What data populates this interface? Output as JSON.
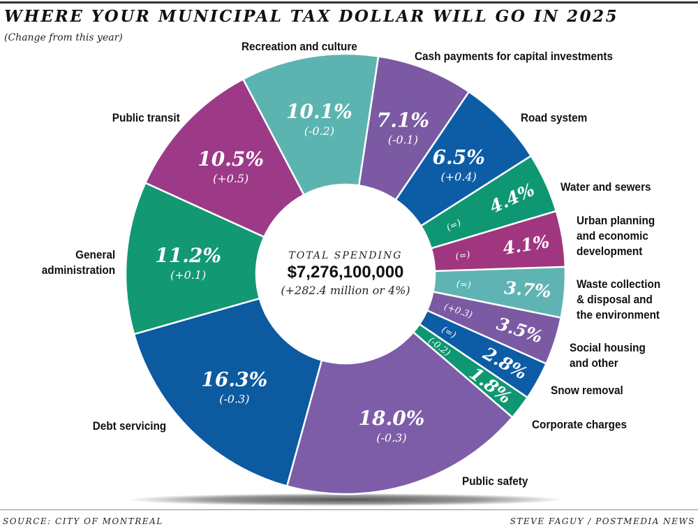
{
  "chart_data": {
    "type": "pie",
    "title": "WHERE YOUR MUNICIPAL TAX DOLLAR WILL GO IN 2025",
    "subtitle": "(Change from this year)",
    "center": {
      "label": "TOTAL SPENDING",
      "total": "$7,276,100,000",
      "change": "(+282.4 million or 4%)"
    },
    "slices": [
      {
        "name": "Cash payments for capital investments",
        "value": 7.1,
        "pct_label": "7.1%",
        "change": "(-0.1)",
        "color": "#7b5aa3"
      },
      {
        "name": "Road system",
        "value": 6.5,
        "pct_label": "6.5%",
        "change": "(+0.4)",
        "color": "#0c5da6"
      },
      {
        "name": "Water and sewers",
        "value": 4.4,
        "pct_label": "4.4%",
        "change": "(=)",
        "color": "#0f9773"
      },
      {
        "name": "Urban planning and economic development",
        "value": 4.1,
        "pct_label": "4.1%",
        "change": "(=)",
        "color": "#a0367f"
      },
      {
        "name": "Waste collection & disposal and the environment",
        "value": 3.7,
        "pct_label": "3.7%",
        "change": "(=)",
        "color": "#5fb4b3"
      },
      {
        "name": "Social housing and other",
        "value": 3.5,
        "pct_label": "3.5%",
        "change": "(+0.3)",
        "color": "#7b5aa3"
      },
      {
        "name": "Snow removal",
        "value": 2.8,
        "pct_label": "2.8%",
        "change": "(=)",
        "color": "#0c5da6"
      },
      {
        "name": "Corporate charges",
        "value": 1.8,
        "pct_label": "1.8%",
        "change": "(-0.2)",
        "color": "#0f9773"
      },
      {
        "name": "Public safety",
        "value": 18.0,
        "pct_label": "18.0%",
        "change": "(-0.3)",
        "color": "#7d5da8"
      },
      {
        "name": "Debt servicing",
        "value": 16.3,
        "pct_label": "16.3%",
        "change": "(-0.3)",
        "color": "#0c5aa0"
      },
      {
        "name": "General administration",
        "value": 11.2,
        "pct_label": "11.2%",
        "change": "(+0.1)",
        "color": "#129872"
      },
      {
        "name": "Public transit",
        "value": 10.5,
        "pct_label": "10.5%",
        "change": "(+0.5)",
        "color": "#9c3a88"
      },
      {
        "name": "Recreation and culture",
        "value": 10.1,
        "pct_label": "10.1%",
        "change": "(-0.2)",
        "color": "#5cb4b1"
      }
    ]
  },
  "footer": {
    "source": "SOURCE: CITY OF MONTREAL",
    "credit": "STEVE FAGUY / POSTMEDIA NEWS"
  }
}
